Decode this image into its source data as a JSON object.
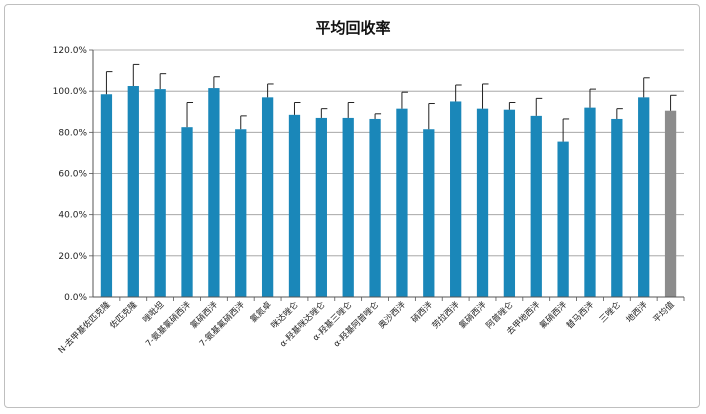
{
  "chart_data": {
    "type": "bar",
    "title": "平均回收率",
    "xlabel": "",
    "ylabel": "",
    "ylim": [
      0,
      120
    ],
    "yticks": [
      "0.0%",
      "20.0%",
      "40.0%",
      "60.0%",
      "80.0%",
      "100.0%",
      "120.0%"
    ],
    "grid": true,
    "legend": "none",
    "colors": {
      "bar": "#1a87b9",
      "average_bar": "#8c8c8c",
      "grid": "#9a9a9a",
      "error": "#222222"
    },
    "categories": [
      "N-去甲基佐匹克隆",
      "佐匹克隆",
      "唑吡坦",
      "7-氨基氯硝西泮",
      "氯硝西泮",
      "7-氨基氟硝西泮",
      "氯氮卓",
      "咪达唑仑",
      "α-羟基咪达唑仑",
      "α-羟基三唑仑",
      "α-羟基阿普唑仑",
      "奥沙西泮",
      "硝西泮",
      "劳拉西泮",
      "氯硝西泮",
      "阿普唑仑",
      "去甲地西泮",
      "氟硝西泮",
      "替马西泮",
      "三唑仑",
      "地西泮",
      "平均值"
    ],
    "series": [
      {
        "values": [
          98.5,
          102.5,
          101,
          82.5,
          101.5,
          81.5,
          97,
          88.5,
          87,
          87,
          86.5,
          91.5,
          81.5,
          95,
          91.5,
          91,
          88,
          75.5,
          92,
          86.5,
          97,
          90.5
        ],
        "errors": [
          11,
          10.5,
          7.5,
          12,
          5.5,
          6.5,
          6.5,
          6,
          4.5,
          7.5,
          2.5,
          8,
          12.5,
          8,
          12,
          3.5,
          8.5,
          11,
          9,
          5,
          9.5,
          7.5
        ]
      }
    ]
  }
}
